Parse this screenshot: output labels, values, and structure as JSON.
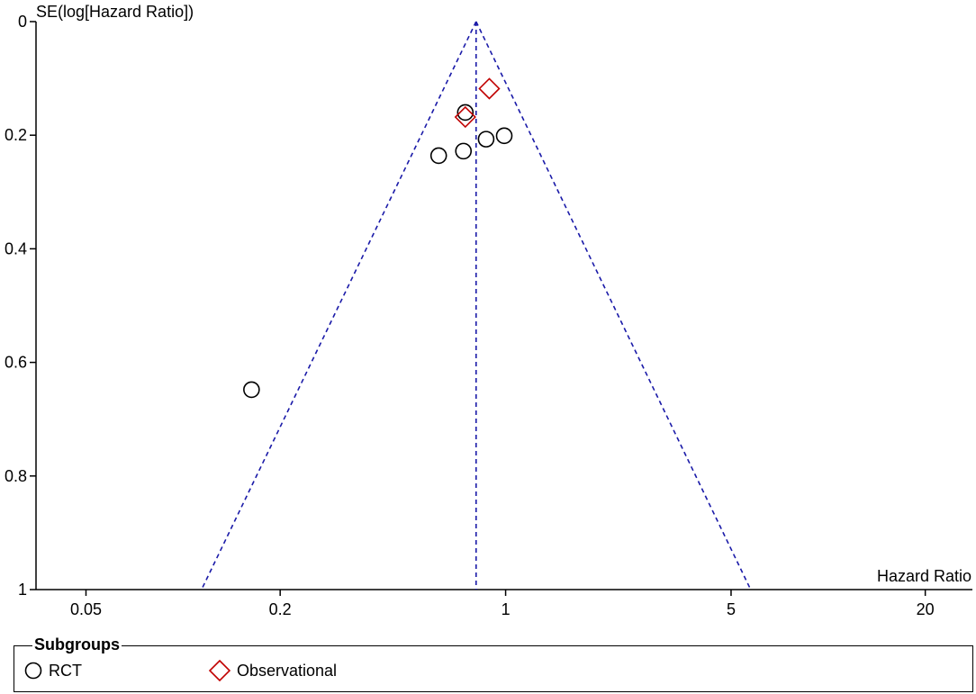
{
  "chart_data": {
    "type": "scatter",
    "title": "",
    "xlabel": "Hazard Ratio",
    "ylabel": "SE(log[Hazard Ratio])",
    "x_scale": "log",
    "xlim": [
      0.035,
      28
    ],
    "ylim": [
      0,
      1
    ],
    "y_inverted": true,
    "xticks": [
      {
        "value": 0.05,
        "label": "0.05"
      },
      {
        "value": 0.2,
        "label": "0.2"
      },
      {
        "value": 1,
        "label": "1"
      },
      {
        "value": 5,
        "label": "5"
      },
      {
        "value": 20,
        "label": "20"
      }
    ],
    "yticks": [
      {
        "value": 0,
        "label": "0"
      },
      {
        "value": 0.2,
        "label": "0.2"
      },
      {
        "value": 0.4,
        "label": "0.4"
      },
      {
        "value": 0.6,
        "label": "0.6"
      },
      {
        "value": 0.8,
        "label": "0.8"
      },
      {
        "value": 1,
        "label": "1"
      }
    ],
    "pooled_estimate": 0.81,
    "funnel_lines": "dashed",
    "funnel_color": "#1a1aa8",
    "grid": false,
    "legend_position": "bottom",
    "series": [
      {
        "name": "RCT",
        "marker": "circle",
        "color": "#000000",
        "points": [
          {
            "x": 0.75,
            "y": 0.16
          },
          {
            "x": 0.62,
            "y": 0.236
          },
          {
            "x": 0.74,
            "y": 0.228
          },
          {
            "x": 0.87,
            "y": 0.207
          },
          {
            "x": 0.99,
            "y": 0.201
          },
          {
            "x": 0.163,
            "y": 0.648
          }
        ]
      },
      {
        "name": "Observational",
        "marker": "diamond",
        "color": "#c00000",
        "points": [
          {
            "x": 0.89,
            "y": 0.118
          },
          {
            "x": 0.75,
            "y": 0.168
          }
        ]
      }
    ]
  },
  "legend": {
    "title": "Subgroups",
    "items": [
      {
        "label": "RCT",
        "marker": "circle"
      },
      {
        "label": "Observational",
        "marker": "diamond"
      }
    ]
  }
}
